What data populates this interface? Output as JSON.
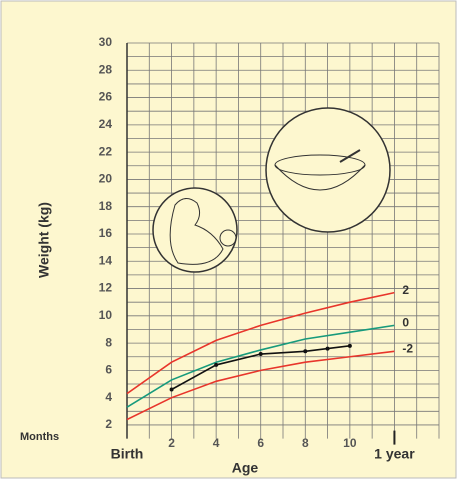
{
  "chart_data": {
    "type": "line",
    "x_label": "Age",
    "y_label": "Weight (kg)",
    "x_row_label": "Months",
    "xlim": [
      0,
      14
    ],
    "ylim": [
      1,
      30
    ],
    "xticks": [
      {
        "value": 0,
        "label": "Birth"
      },
      2,
      4,
      6,
      8,
      10,
      {
        "value": 12,
        "label": "1 year"
      }
    ],
    "yticks": [
      2,
      4,
      6,
      8,
      10,
      12,
      14,
      16,
      18,
      20,
      22,
      24,
      26,
      28,
      30
    ],
    "xgrid": [
      0,
      1,
      2,
      3,
      4,
      5,
      6,
      7,
      8,
      9,
      10,
      11,
      12,
      13,
      14
    ],
    "ygrid": [
      2,
      3,
      4,
      5,
      6,
      7,
      8,
      9,
      10,
      11,
      12,
      13,
      14,
      15,
      16,
      17,
      18,
      19,
      20,
      21,
      22,
      23,
      24,
      25,
      26,
      27,
      28,
      29,
      30
    ],
    "x": [
      0,
      2,
      4,
      6,
      8,
      10,
      12
    ],
    "series": [
      {
        "name": "2",
        "color": "#e8352b",
        "values": [
          4.3,
          6.6,
          8.2,
          9.3,
          10.2,
          11.0,
          11.7
        ]
      },
      {
        "name": "0",
        "color": "#179a7c",
        "values": [
          3.3,
          5.3,
          6.6,
          7.5,
          8.3,
          8.8,
          9.3
        ]
      },
      {
        "name": "-2",
        "color": "#e8352b",
        "values": [
          2.4,
          4.0,
          5.2,
          6.0,
          6.6,
          7.0,
          7.4
        ]
      },
      {
        "color": "#111111",
        "x": [
          2,
          4,
          6,
          8,
          9,
          10
        ],
        "values": [
          4.6,
          6.4,
          7.2,
          7.4,
          7.6,
          7.8
        ],
        "markers": true
      }
    ]
  }
}
